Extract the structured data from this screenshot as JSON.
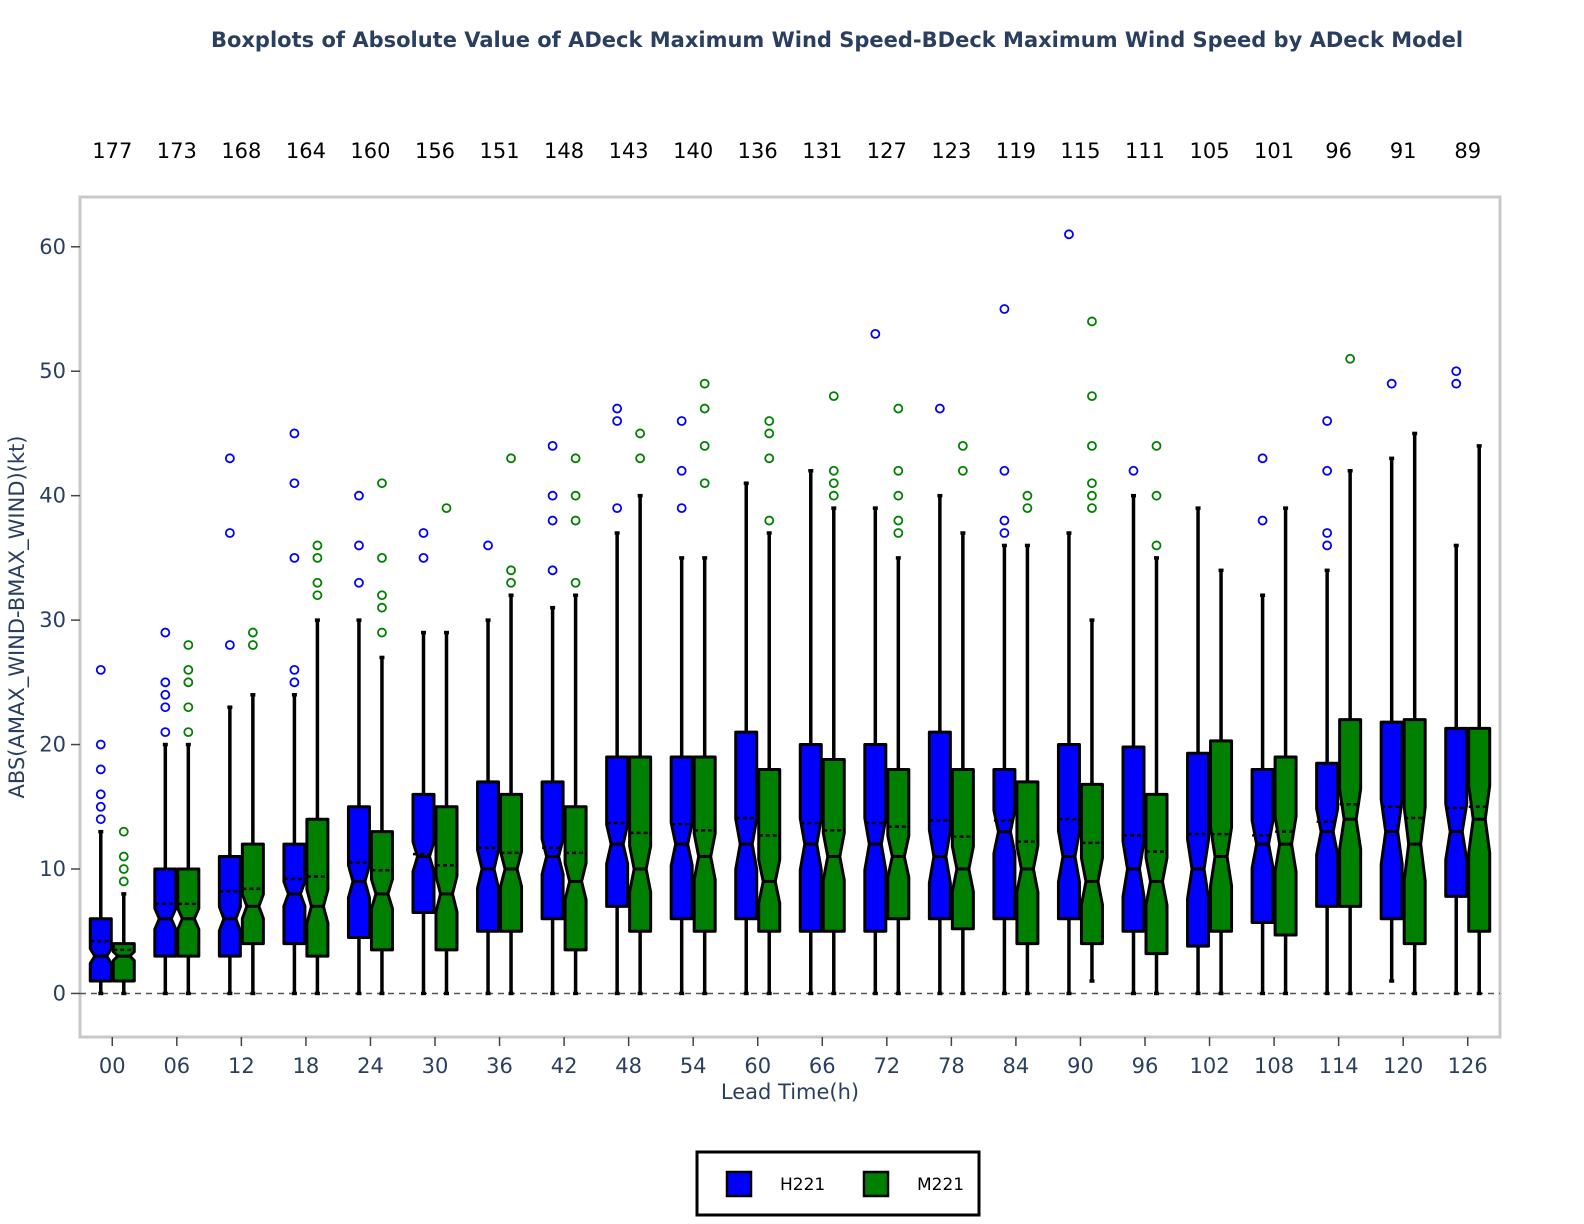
{
  "chart_data": {
    "type": "box",
    "title": "Boxplots of Absolute Value of ADeck Maximum Wind Speed-BDeck Maximum Wind Speed by ADeck Model",
    "xlabel": "Lead Time(h)",
    "ylabel": "ABS(AMAX_WIND-BMAX_WIND)(kt)",
    "ylim": [
      -3.5,
      64
    ],
    "yticks": [
      0,
      10,
      20,
      30,
      40,
      50,
      60
    ],
    "categories": [
      "00",
      "06",
      "12",
      "18",
      "24",
      "30",
      "36",
      "42",
      "48",
      "54",
      "60",
      "66",
      "72",
      "78",
      "84",
      "90",
      "96",
      "102",
      "108",
      "114",
      "120",
      "126"
    ],
    "counts": [
      "177",
      "173",
      "168",
      "164",
      "160",
      "156",
      "151",
      "148",
      "143",
      "140",
      "136",
      "131",
      "127",
      "123",
      "119",
      "115",
      "111",
      "105",
      "101",
      "96",
      "91",
      "89"
    ],
    "reference_line": 0,
    "legend_position": "bottom-center",
    "series": [
      {
        "name": "H221",
        "color": "#0000ff",
        "boxes": [
          {
            "min": 0,
            "q1": 1,
            "median": 3,
            "q3": 6,
            "max": 13,
            "mean": 4.2,
            "outliers": [
              14,
              15,
              16,
              18,
              20,
              26
            ]
          },
          {
            "min": 0,
            "q1": 3,
            "median": 6,
            "q3": 10,
            "max": 20,
            "mean": 7.2,
            "outliers": [
              21,
              23,
              24,
              25,
              29
            ]
          },
          {
            "min": 0,
            "q1": 3,
            "median": 6,
            "q3": 11,
            "max": 23,
            "mean": 8.2,
            "outliers": [
              28,
              37,
              43
            ]
          },
          {
            "min": 0,
            "q1": 4,
            "median": 8,
            "q3": 12,
            "max": 24,
            "mean": 9.2,
            "outliers": [
              25,
              26,
              35,
              41,
              45
            ]
          },
          {
            "min": 0,
            "q1": 4.5,
            "median": 9,
            "q3": 15,
            "max": 30,
            "mean": 10.5,
            "outliers": [
              33,
              36,
              40
            ]
          },
          {
            "min": 0,
            "q1": 6.5,
            "median": 11,
            "q3": 16,
            "max": 29,
            "mean": 11.2,
            "outliers": [
              35,
              37
            ]
          },
          {
            "min": 0,
            "q1": 5,
            "median": 10,
            "q3": 17,
            "max": 30,
            "mean": 11.7,
            "outliers": [
              36
            ]
          },
          {
            "min": 0,
            "q1": 6,
            "median": 11,
            "q3": 17,
            "max": 31,
            "mean": 11.7,
            "outliers": [
              34,
              38,
              40,
              44
            ]
          },
          {
            "min": 0,
            "q1": 7,
            "median": 12,
            "q3": 19,
            "max": 37,
            "mean": 13.7,
            "outliers": [
              39,
              46,
              47
            ]
          },
          {
            "min": 0,
            "q1": 6,
            "median": 12,
            "q3": 19,
            "max": 35,
            "mean": 13.6,
            "outliers": [
              39,
              42,
              46
            ]
          },
          {
            "min": 0,
            "q1": 6,
            "median": 12,
            "q3": 21,
            "max": 41,
            "mean": 14.1,
            "outliers": []
          },
          {
            "min": 0,
            "q1": 5,
            "median": 12,
            "q3": 20,
            "max": 42,
            "mean": 13.7,
            "outliers": []
          },
          {
            "min": 0,
            "q1": 5,
            "median": 12,
            "q3": 20,
            "max": 39,
            "mean": 13.7,
            "outliers": [
              53
            ]
          },
          {
            "min": 0,
            "q1": 6,
            "median": 11,
            "q3": 21,
            "max": 40,
            "mean": 13.9,
            "outliers": [
              47
            ]
          },
          {
            "min": 0,
            "q1": 6,
            "median": 13,
            "q3": 18,
            "max": 36,
            "mean": 13.9,
            "outliers": [
              37,
              38,
              42,
              55
            ]
          },
          {
            "min": 0,
            "q1": 6,
            "median": 11,
            "q3": 20,
            "max": 37,
            "mean": 14,
            "outliers": [
              61
            ]
          },
          {
            "min": 0,
            "q1": 5,
            "median": 10,
            "q3": 19.8,
            "max": 40,
            "mean": 12.7,
            "outliers": [
              42
            ]
          },
          {
            "min": 0,
            "q1": 3.8,
            "median": 10,
            "q3": 19.3,
            "max": 39,
            "mean": 12.8,
            "outliers": []
          },
          {
            "min": 0,
            "q1": 5.7,
            "median": 12,
            "q3": 18,
            "max": 32,
            "mean": 12.7,
            "outliers": [
              38,
              43
            ]
          },
          {
            "min": 0,
            "q1": 7,
            "median": 13,
            "q3": 18.5,
            "max": 34,
            "mean": 13.8,
            "outliers": [
              36,
              37,
              42,
              46
            ]
          },
          {
            "min": 1,
            "q1": 6,
            "median": 13,
            "q3": 21.8,
            "max": 43,
            "mean": 15,
            "outliers": [
              49
            ]
          },
          {
            "min": 0,
            "q1": 7.8,
            "median": 13,
            "q3": 21.3,
            "max": 36,
            "mean": 14.9,
            "outliers": [
              49,
              50
            ]
          }
        ]
      },
      {
        "name": "M221",
        "color": "#008000",
        "boxes": [
          {
            "min": 0,
            "q1": 1,
            "median": 3,
            "q3": 4,
            "max": 8,
            "mean": 3.5,
            "outliers": [
              9,
              10,
              11,
              13
            ]
          },
          {
            "min": 0,
            "q1": 3,
            "median": 6,
            "q3": 10,
            "max": 20,
            "mean": 7.2,
            "outliers": [
              21,
              23,
              25,
              26,
              28
            ]
          },
          {
            "min": 0,
            "q1": 4,
            "median": 7,
            "q3": 12,
            "max": 24,
            "mean": 8.4,
            "outliers": [
              28,
              29
            ]
          },
          {
            "min": 0,
            "q1": 3,
            "median": 7,
            "q3": 14,
            "max": 30,
            "mean": 9.4,
            "outliers": [
              32,
              33,
              35,
              36
            ]
          },
          {
            "min": 0,
            "q1": 3.5,
            "median": 8,
            "q3": 13,
            "max": 27,
            "mean": 9.9,
            "outliers": [
              29,
              31,
              32,
              35,
              41
            ]
          },
          {
            "min": 0,
            "q1": 3.5,
            "median": 8,
            "q3": 15,
            "max": 29,
            "mean": 10.3,
            "outliers": [
              39
            ]
          },
          {
            "min": 0,
            "q1": 5,
            "median": 10,
            "q3": 16,
            "max": 32,
            "mean": 11.3,
            "outliers": [
              33,
              34,
              43
            ]
          },
          {
            "min": 0,
            "q1": 3.5,
            "median": 9,
            "q3": 15,
            "max": 32,
            "mean": 11.3,
            "outliers": [
              33,
              38,
              40,
              43
            ]
          },
          {
            "min": 0,
            "q1": 5,
            "median": 10,
            "q3": 19,
            "max": 40,
            "mean": 12.9,
            "outliers": [
              43,
              45
            ]
          },
          {
            "min": 0,
            "q1": 5,
            "median": 11,
            "q3": 19,
            "max": 35,
            "mean": 13.1,
            "outliers": [
              41,
              44,
              47,
              49
            ]
          },
          {
            "min": 0,
            "q1": 5,
            "median": 9,
            "q3": 18,
            "max": 37,
            "mean": 12.7,
            "outliers": [
              38,
              43,
              45,
              46
            ]
          },
          {
            "min": 0,
            "q1": 5,
            "median": 11,
            "q3": 18.8,
            "max": 39,
            "mean": 13.1,
            "outliers": [
              40,
              41,
              42,
              48
            ]
          },
          {
            "min": 0,
            "q1": 6,
            "median": 11,
            "q3": 18,
            "max": 35,
            "mean": 13.4,
            "outliers": [
              37,
              38,
              40,
              42,
              47
            ]
          },
          {
            "min": 0,
            "q1": 5.2,
            "median": 10,
            "q3": 18,
            "max": 37,
            "mean": 12.6,
            "outliers": [
              42,
              44
            ]
          },
          {
            "min": 0,
            "q1": 4,
            "median": 10,
            "q3": 17,
            "max": 36,
            "mean": 12.2,
            "outliers": [
              39,
              40
            ]
          },
          {
            "min": 1,
            "q1": 4,
            "median": 9,
            "q3": 16.8,
            "max": 30,
            "mean": 12.1,
            "outliers": [
              39,
              40,
              41,
              44,
              48,
              54
            ]
          },
          {
            "min": 0,
            "q1": 3.2,
            "median": 9,
            "q3": 16,
            "max": 35,
            "mean": 11.4,
            "outliers": [
              36,
              40,
              44
            ]
          },
          {
            "min": 0,
            "q1": 5,
            "median": 11,
            "q3": 20.3,
            "max": 34,
            "mean": 12.8,
            "outliers": []
          },
          {
            "min": 0,
            "q1": 4.7,
            "median": 12,
            "q3": 19,
            "max": 39,
            "mean": 13,
            "outliers": []
          },
          {
            "min": 0,
            "q1": 7,
            "median": 14,
            "q3": 22,
            "max": 42,
            "mean": 15.2,
            "outliers": [
              51
            ]
          },
          {
            "min": 0,
            "q1": 4,
            "median": 12,
            "q3": 22,
            "max": 45,
            "mean": 14.1,
            "outliers": []
          },
          {
            "min": 0,
            "q1": 5,
            "median": 14,
            "q3": 21.3,
            "max": 44,
            "mean": 15,
            "outliers": []
          }
        ]
      }
    ]
  }
}
